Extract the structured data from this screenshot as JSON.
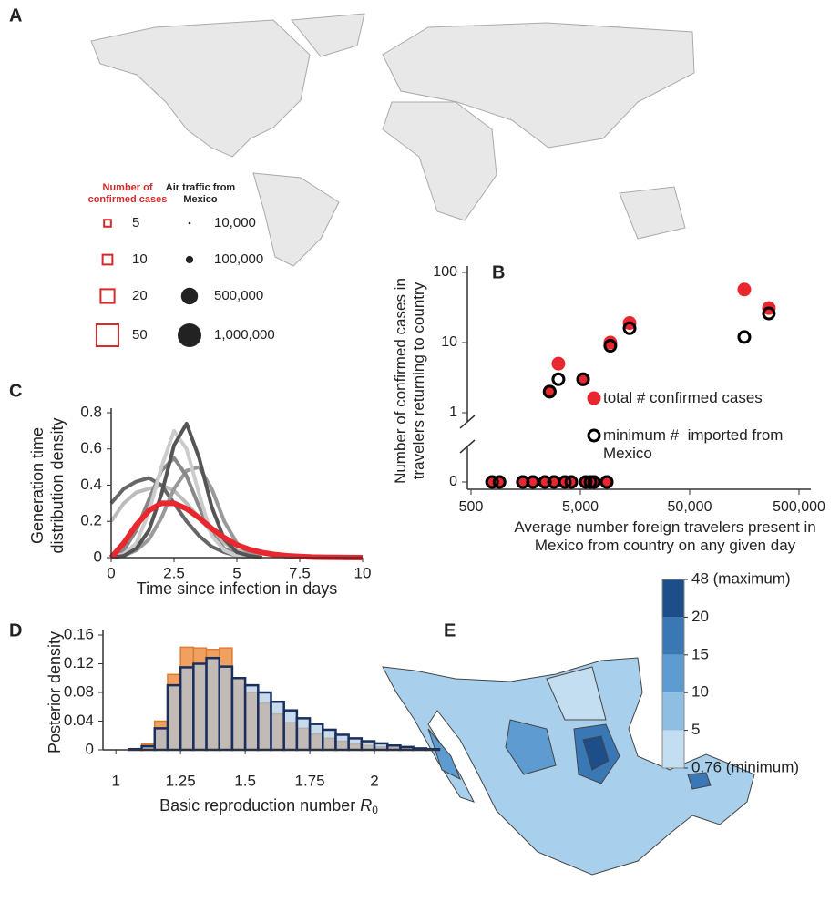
{
  "chart_data": [
    {
      "type": "map",
      "panel": "A",
      "legend": [
        {
          "title": "Number of confirmed cases",
          "color": "#d42a2a",
          "shape": "square",
          "sizes": [
            5,
            10,
            20,
            50
          ]
        },
        {
          "title": "Air traffic from Mexico",
          "color": "#222222",
          "shape": "circle",
          "sizes": [
            {
              "value": 10000,
              "label": "10,000"
            },
            {
              "value": 100000,
              "label": "100,000"
            },
            {
              "value": 500000,
              "label": "500,000"
            },
            {
              "value": 1000000,
              "label": "1,000,000"
            }
          ]
        }
      ]
    },
    {
      "type": "scatter",
      "panel": "B",
      "x_label": "Average number foreign travelers present in Mexico from country on any given day",
      "y_label": "Number of confirmed cases in travelers returning to country",
      "log_x": true,
      "log_y": true,
      "xlim": [
        500,
        800000
      ],
      "xticks": [
        500,
        {
          "value": 5000,
          "label": "5,000"
        },
        {
          "value": 50000,
          "label": "50,000"
        },
        {
          "value": 500000,
          "label": "500,000"
        }
      ],
      "ylim": [
        0,
        100
      ],
      "yticks": [
        0,
        1,
        10,
        100
      ],
      "series": [
        {
          "name": "total # confirmed cases",
          "color": "#e8282e",
          "marker": "filled",
          "x": [
            780,
            910,
            1490,
            1840,
            2370,
            2620,
            2870,
            3150,
            3610,
            4130,
            5300,
            5610,
            6180,
            6670,
            8720,
            9400,
            14100,
            158000,
            265000
          ],
          "values": [
            0,
            0,
            0,
            0,
            0,
            2,
            0,
            5,
            0,
            0,
            3,
            0,
            0,
            0,
            0,
            10,
            19,
            57,
            31
          ]
        },
        {
          "name": "minimum #  imported from Mexico",
          "color": "#000000",
          "marker": "open",
          "x": [
            780,
            910,
            1490,
            1840,
            2370,
            2620,
            2870,
            3150,
            3610,
            4130,
            5300,
            5610,
            6180,
            6670,
            8720,
            9400,
            14100,
            158000,
            265000
          ],
          "values": [
            0,
            0,
            0,
            0,
            0,
            2,
            0,
            3,
            0,
            0,
            3,
            0,
            0,
            0,
            0,
            9,
            16,
            12,
            26
          ]
        }
      ]
    },
    {
      "type": "line",
      "panel": "C",
      "x_label": "Time since infection in days",
      "y_label": "Generation time distribution density",
      "xlim": [
        0,
        10
      ],
      "xticks": [
        0,
        2.5,
        5,
        7.5,
        10
      ],
      "ylim": [
        0,
        0.8
      ],
      "yticks": [
        0,
        0.2,
        0.4,
        0.6,
        0.8
      ],
      "series": [
        {
          "color": "#bbbbbb",
          "width": 4,
          "x": [
            0,
            0.5,
            1,
            1.5,
            2,
            2.5,
            3,
            3.5,
            4,
            4.5,
            5,
            5.5,
            6
          ],
          "values": [
            0.2,
            0.3,
            0.36,
            0.38,
            0.4,
            0.37,
            0.3,
            0.22,
            0.14,
            0.08,
            0.04,
            0.02,
            0.01
          ]
        },
        {
          "color": "#666666",
          "width": 4,
          "x": [
            0,
            0.5,
            1,
            1.5,
            2,
            2.5,
            3,
            3.5,
            4,
            4.5,
            5,
            5.5,
            6
          ],
          "values": [
            0.3,
            0.38,
            0.42,
            0.44,
            0.4,
            0.3,
            0.2,
            0.12,
            0.06,
            0.03,
            0.01,
            0,
            0
          ]
        },
        {
          "color": "#999999",
          "width": 4,
          "x": [
            0,
            0.5,
            1,
            1.5,
            2,
            2.5,
            3,
            3.5,
            4,
            4.5,
            5,
            5.5,
            6
          ],
          "values": [
            0,
            0.01,
            0.04,
            0.1,
            0.22,
            0.38,
            0.48,
            0.5,
            0.38,
            0.2,
            0.08,
            0.02,
            0
          ]
        },
        {
          "color": "#888888",
          "width": 4,
          "x": [
            0,
            0.5,
            1,
            1.5,
            2,
            2.5,
            3,
            3.5,
            4,
            4.5,
            5,
            5.5,
            6
          ],
          "values": [
            0,
            0.04,
            0.15,
            0.32,
            0.48,
            0.55,
            0.45,
            0.28,
            0.13,
            0.05,
            0.02,
            0,
            0
          ]
        },
        {
          "color": "#cccccc",
          "width": 4,
          "x": [
            0,
            0.5,
            1,
            1.5,
            2,
            2.5,
            3,
            3.5,
            4,
            4.5,
            5,
            5.5,
            6
          ],
          "values": [
            0,
            0.02,
            0.08,
            0.25,
            0.5,
            0.7,
            0.6,
            0.35,
            0.12,
            0.04,
            0.01,
            0,
            0
          ]
        },
        {
          "color": "#555555",
          "width": 4,
          "x": [
            0,
            0.5,
            1,
            1.5,
            2,
            2.5,
            3,
            3.5,
            4,
            4.5,
            5,
            5.5,
            6
          ],
          "values": [
            0,
            0.01,
            0.05,
            0.15,
            0.35,
            0.62,
            0.74,
            0.55,
            0.28,
            0.1,
            0.03,
            0.01,
            0
          ]
        },
        {
          "color": "#e8282e",
          "width": 6,
          "x": [
            0,
            0.5,
            1,
            1.5,
            2,
            2.5,
            3,
            3.5,
            4,
            4.5,
            5,
            5.5,
            6,
            6.5,
            7,
            7.5,
            8,
            8.5,
            9,
            9.5,
            10
          ],
          "values": [
            0,
            0.08,
            0.18,
            0.26,
            0.3,
            0.3,
            0.27,
            0.22,
            0.16,
            0.11,
            0.07,
            0.045,
            0.028,
            0.017,
            0.01,
            0.006,
            0.003,
            0.002,
            0.001,
            0.0005,
            0.0003
          ]
        }
      ]
    },
    {
      "type": "histogram",
      "panel": "D",
      "x_label": {
        "text": "Basic reproduction number",
        "symbol": "R",
        "subscript": "0"
      },
      "y_label": "Posterior density",
      "xlim": [
        0.95,
        2.25
      ],
      "xticks": [
        1,
        1.25,
        1.5,
        1.75,
        2
      ],
      "ylim": [
        0,
        0.16
      ],
      "yticks": [
        0,
        0.04,
        0.08,
        0.12,
        0.16
      ],
      "bins": [
        1.05,
        1.1,
        1.15,
        1.2,
        1.25,
        1.3,
        1.35,
        1.4,
        1.45,
        1.5,
        1.55,
        1.6,
        1.65,
        1.7,
        1.75,
        1.8,
        1.85,
        1.9,
        1.95,
        2.0,
        2.05,
        2.1,
        2.15,
        2.2,
        2.25
      ],
      "series": [
        {
          "color": "#f0a060",
          "edge": "#e07b30",
          "values": [
            0.001,
            0.008,
            0.04,
            0.105,
            0.143,
            0.142,
            0.14,
            0.142,
            0.1,
            0.08,
            0.065,
            0.05,
            0.038,
            0.03,
            0.022,
            0.016,
            0.012,
            0.008,
            0.006,
            0.004,
            0.003,
            0.002,
            0.001,
            0.0005
          ]
        },
        {
          "color": "#a9c8e4",
          "edge": "#1a2f5e",
          "values": [
            0.001,
            0.005,
            0.03,
            0.09,
            0.115,
            0.12,
            0.128,
            0.116,
            0.1,
            0.09,
            0.08,
            0.067,
            0.055,
            0.044,
            0.036,
            0.028,
            0.021,
            0.016,
            0.012,
            0.009,
            0.006,
            0.004,
            0.002,
            0.001
          ]
        }
      ]
    },
    {
      "type": "choropleth",
      "panel": "E",
      "colorbar_ticks": [
        {
          "value": 48,
          "label": "48 (maximum)"
        },
        20,
        15,
        10,
        5,
        {
          "value": 0.76,
          "label": "0.76 (minimum)"
        }
      ],
      "colors": [
        "#1d4e89",
        "#3a78b5",
        "#5d9bd0",
        "#8ebfe3",
        "#c3def0"
      ]
    }
  ]
}
